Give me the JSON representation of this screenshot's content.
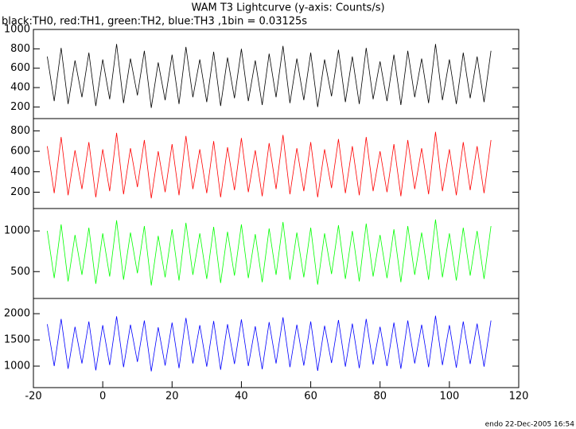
{
  "chart_data": {
    "type": "line",
    "title": "WAM T3 Lightcurve (y-axis: Counts/s)",
    "subtitle": "black:TH0, red:TH1, green:TH2, blue:TH3 ,1bin = 0.03125s",
    "footer": "endo 22-Dec-2005 16:54",
    "xlim": [
      -20,
      120
    ],
    "xticks": [
      -20,
      0,
      20,
      40,
      60,
      80,
      100,
      120
    ],
    "x": [
      -16,
      -14,
      -12,
      -10,
      -8,
      -6,
      -4,
      -2,
      0,
      2,
      4,
      6,
      8,
      10,
      12,
      14,
      16,
      18,
      20,
      22,
      24,
      26,
      28,
      30,
      32,
      34,
      36,
      38,
      40,
      42,
      44,
      46,
      48,
      50,
      52,
      54,
      56,
      58,
      60,
      62,
      64,
      66,
      68,
      70,
      72,
      74,
      76,
      78,
      80,
      82,
      84,
      86,
      88,
      90,
      92,
      94,
      96,
      98,
      100,
      102,
      104,
      106,
      108,
      110,
      112
    ],
    "series": [
      {
        "color": "#000000",
        "ylim": [
          80,
          1000
        ],
        "yticks": [
          200,
          400,
          600,
          800,
          1000
        ],
        "values": [
          720,
          260,
          810,
          230,
          680,
          300,
          760,
          210,
          690,
          280,
          850,
          240,
          700,
          320,
          780,
          190,
          660,
          270,
          740,
          230,
          820,
          300,
          690,
          250,
          770,
          210,
          710,
          290,
          800,
          260,
          680,
          220,
          750,
          300,
          830,
          240,
          700,
          270,
          760,
          200,
          690,
          310,
          790,
          250,
          720,
          230,
          810,
          280,
          670,
          260,
          740,
          220,
          780,
          300,
          700,
          240,
          850,
          270,
          690,
          230,
          760,
          290,
          720,
          250,
          780
        ]
      },
      {
        "color": "#ff0000",
        "ylim": [
          40,
          920
        ],
        "yticks": [
          200,
          400,
          600,
          800
        ],
        "values": [
          650,
          190,
          740,
          170,
          610,
          230,
          690,
          150,
          620,
          210,
          780,
          180,
          630,
          250,
          710,
          140,
          600,
          200,
          670,
          170,
          750,
          230,
          620,
          190,
          700,
          150,
          640,
          220,
          730,
          200,
          610,
          160,
          680,
          230,
          760,
          180,
          630,
          210,
          690,
          150,
          620,
          240,
          720,
          190,
          650,
          170,
          740,
          210,
          600,
          200,
          670,
          160,
          710,
          230,
          630,
          180,
          790,
          210,
          620,
          170,
          690,
          220,
          650,
          190,
          710
        ]
      },
      {
        "color": "#00ff00",
        "ylim": [
          170,
          1275
        ],
        "yticks": [
          500,
          1000
        ],
        "values": [
          1000,
          420,
          1080,
          380,
          950,
          460,
          1040,
          350,
          970,
          440,
          1130,
          400,
          980,
          480,
          1060,
          330,
          940,
          430,
          1020,
          390,
          1100,
          460,
          970,
          410,
          1050,
          360,
          990,
          450,
          1080,
          420,
          960,
          370,
          1030,
          460,
          1110,
          400,
          980,
          430,
          1040,
          340,
          970,
          470,
          1070,
          410,
          1000,
          380,
          1090,
          440,
          950,
          420,
          1020,
          370,
          1060,
          460,
          980,
          400,
          1140,
          430,
          970,
          390,
          1040,
          450,
          1000,
          410,
          1060
        ]
      },
      {
        "color": "#0000ff",
        "ylim": [
          590,
          2290
        ],
        "yticks": [
          1000,
          1500,
          2000
        ],
        "values": [
          1800,
          1000,
          1900,
          950,
          1750,
          1050,
          1850,
          920,
          1780,
          1020,
          1950,
          980,
          1790,
          1080,
          1870,
          900,
          1740,
          1010,
          1830,
          960,
          1920,
          1050,
          1780,
          990,
          1860,
          930,
          1800,
          1040,
          1890,
          1000,
          1760,
          940,
          1840,
          1050,
          1930,
          980,
          1790,
          1010,
          1850,
          910,
          1770,
          1060,
          1880,
          990,
          1810,
          960,
          1900,
          1030,
          1750,
          1000,
          1830,
          950,
          1870,
          1050,
          1790,
          980,
          1960,
          1020,
          1780,
          970,
          1850,
          1040,
          1810,
          990,
          1870
        ]
      }
    ]
  }
}
